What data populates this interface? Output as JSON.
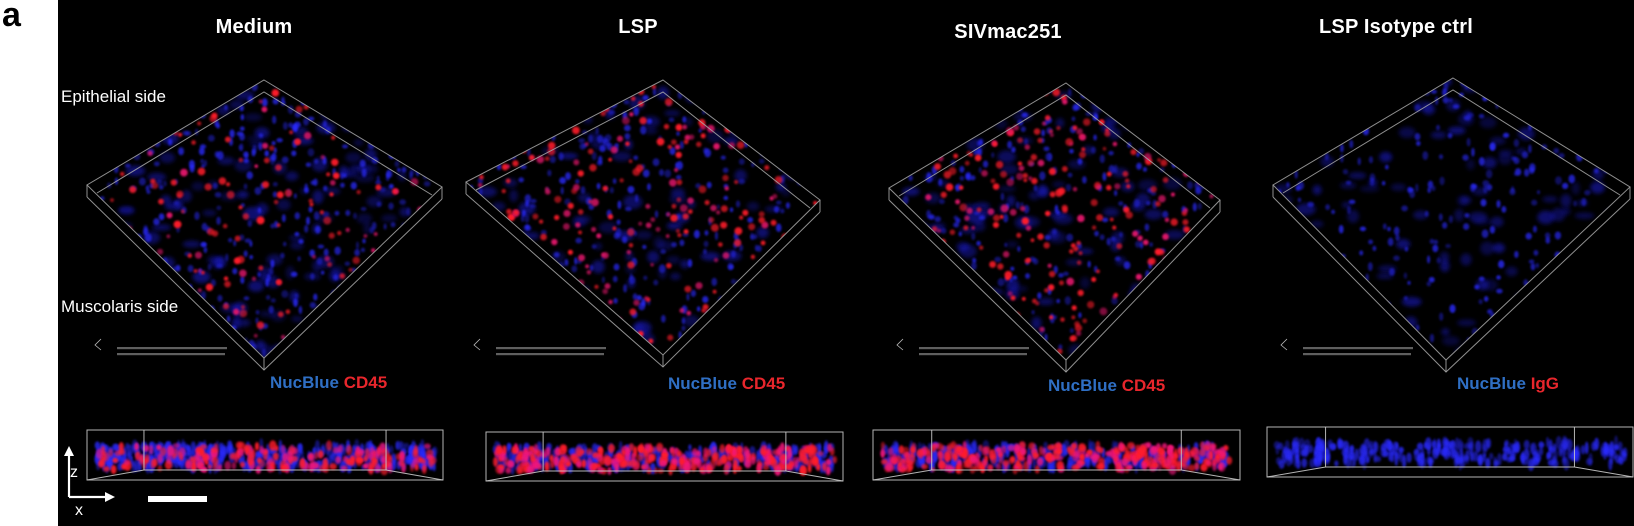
{
  "figure": {
    "panel_letter": "a",
    "orientation_labels": {
      "top": "Epithelial side",
      "bottom": "Muscolaris side"
    },
    "axes": {
      "vertical": "z",
      "horizontal": "x"
    },
    "scale_bar": {
      "visible": true,
      "label": ""
    },
    "colors": {
      "nucblue": "#2f6fc4",
      "cd45": "#e8262c",
      "box_outline": "#a8a8a8",
      "background": "#000000"
    },
    "columns": [
      {
        "title": "Medium",
        "legend": {
          "channel1": "NucBlue",
          "channel2": "CD45"
        },
        "red_density": "medium",
        "blue_density": "high"
      },
      {
        "title": "LSP",
        "legend": {
          "channel1": "NucBlue",
          "channel2": "CD45"
        },
        "red_density": "high",
        "blue_density": "medium"
      },
      {
        "title": "SIVmac251",
        "legend": {
          "channel1": "NucBlue",
          "channel2": "CD45"
        },
        "red_density": "high",
        "blue_density": "medium"
      },
      {
        "title": "LSP Isotype ctrl",
        "legend": {
          "channel1": "NucBlue",
          "channel2": "IgG"
        },
        "red_density": "none",
        "blue_density": "medium"
      }
    ]
  }
}
